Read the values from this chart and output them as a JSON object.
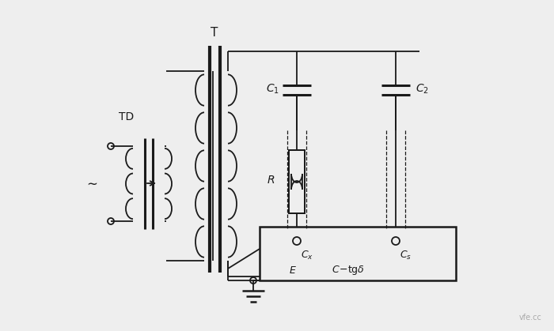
{
  "bg_color": "#eeeeee",
  "line_color": "#1a1a1a",
  "fig_width": 7.0,
  "fig_height": 4.19,
  "dpi": 100,
  "watermark": "vfe.cc"
}
